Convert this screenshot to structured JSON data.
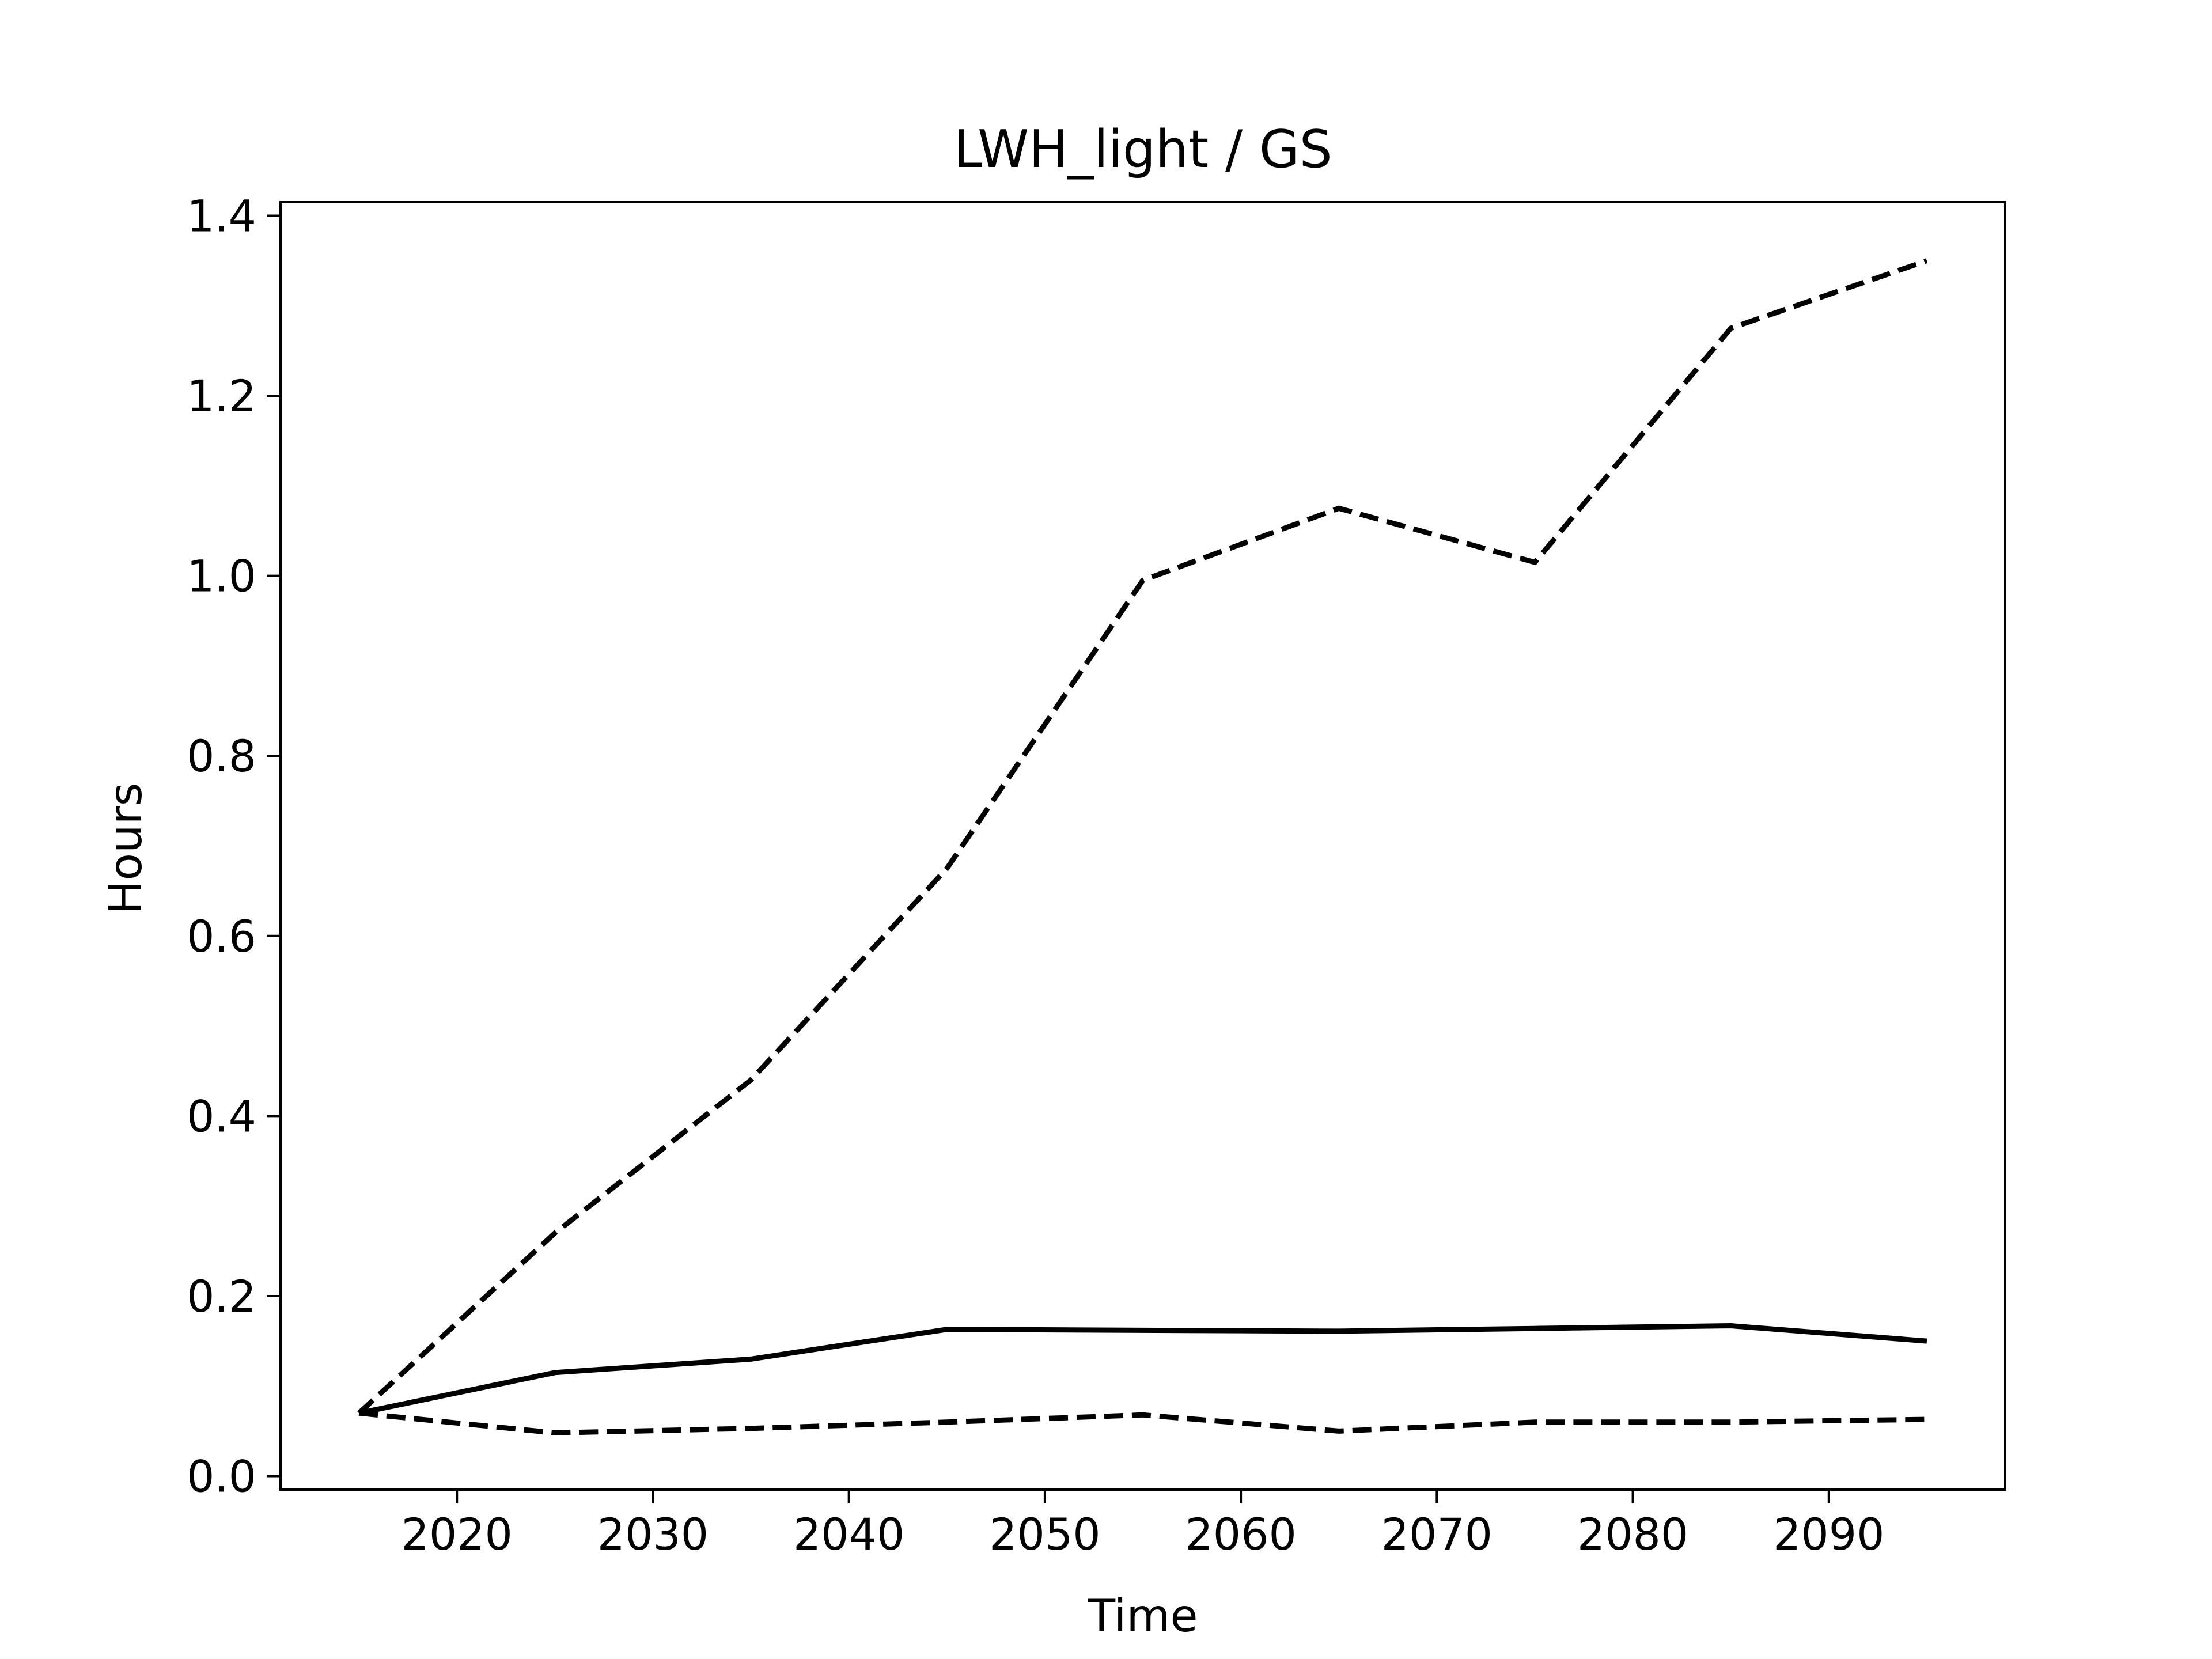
{
  "chart_data": {
    "type": "line",
    "title": "LWH_light / GS",
    "xlabel": "Time",
    "ylabel": "Hours",
    "xlim": [
      2011,
      2099
    ],
    "ylim": [
      -0.015,
      1.415
    ],
    "xticks": [
      2020,
      2030,
      2040,
      2050,
      2060,
      2070,
      2080,
      2090
    ],
    "yticks": [
      0.0,
      0.2,
      0.4,
      0.6,
      0.8,
      1.0,
      1.2,
      1.4
    ],
    "ytick_labels": [
      "0.0",
      "0.2",
      "0.4",
      "0.6",
      "0.8",
      "1.0",
      "1.2",
      "1.4"
    ],
    "grid": false,
    "line_color": "#000000",
    "x": [
      2015,
      2025,
      2035,
      2045,
      2055,
      2065,
      2075,
      2085,
      2095
    ],
    "series": [
      {
        "style": "solid",
        "values": [
          0.07,
          0.115,
          0.13,
          0.163,
          0.162,
          0.161,
          0.164,
          0.167,
          0.15
        ]
      },
      {
        "style": "dashed",
        "values": [
          0.07,
          0.27,
          0.44,
          0.675,
          0.995,
          1.075,
          1.015,
          1.275,
          1.35
        ]
      },
      {
        "style": "dashed",
        "values": [
          0.07,
          0.048,
          0.053,
          0.06,
          0.068,
          0.05,
          0.06,
          0.06,
          0.063
        ]
      }
    ]
  }
}
